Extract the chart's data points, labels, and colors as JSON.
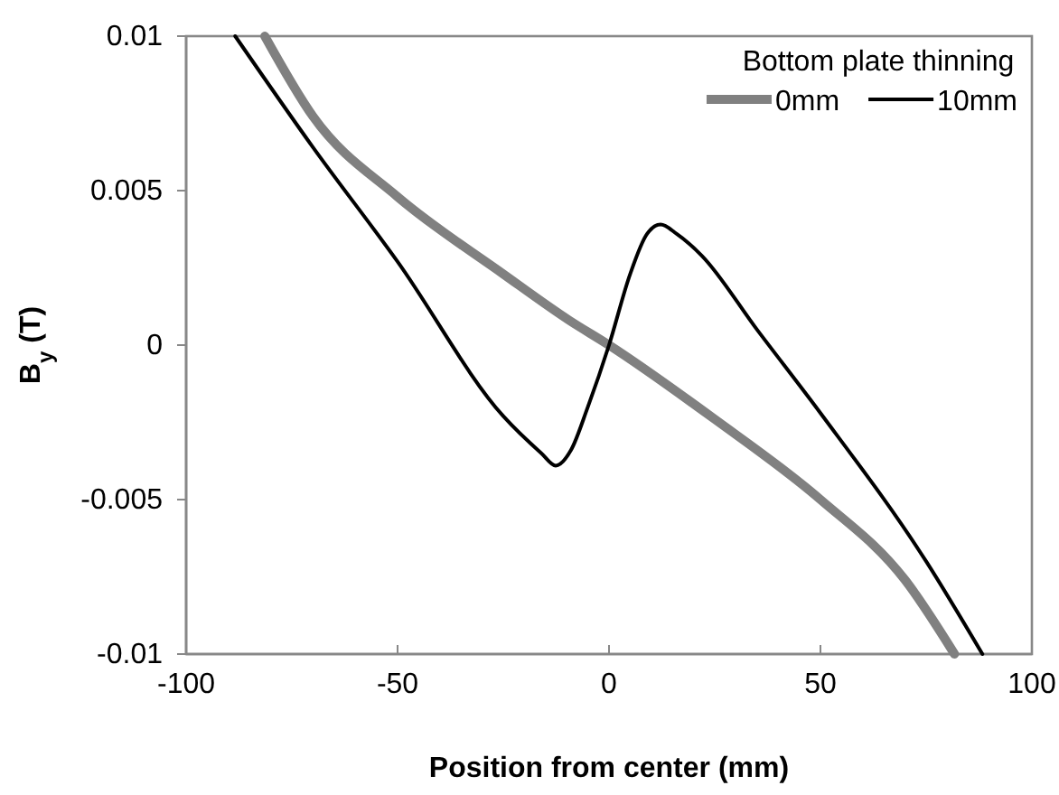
{
  "chart_data": {
    "type": "line",
    "xlabel": "Position from center (mm)",
    "ylabel": "B$_{y}$ (T)",
    "legend_title": "Bottom plate thinning",
    "legend": "top right",
    "grid": false,
    "marker": "none",
    "line_style": "solid",
    "xlim": [
      -100,
      100
    ],
    "xticks": [
      -100,
      -50,
      0,
      50,
      100
    ],
    "ylim": [
      -0.01,
      0.01
    ],
    "yticks": [
      -0.01,
      -0.005,
      0,
      0.005,
      0.01
    ],
    "series": [
      {
        "name": "0mm",
        "color": "#808080",
        "x": [
          -81.4,
          -70,
          -50,
          -25,
          -9.4,
          0,
          25,
          50,
          70,
          81.7
        ],
        "values": [
          0.01,
          0.0074,
          0.0048,
          0.0023,
          0.0008,
          0,
          -0.0024,
          -0.005,
          -0.0076,
          -0.01
        ]
      },
      {
        "name": "10mm",
        "color": "#000000",
        "x": [
          -88.4,
          -70,
          -50,
          -25,
          -16,
          -12.6,
          -9,
          -5,
          0,
          5,
          9,
          12.2,
          16,
          21.9,
          35,
          50,
          75,
          88.3
        ],
        "values": [
          0.01,
          0.0064,
          0.0027,
          -0.0023,
          -0.0035,
          -0.0039,
          -0.0034,
          -0.002,
          0,
          0.0023,
          0.0036,
          0.0039,
          0.0036,
          0.0029,
          0.0005,
          -0.0022,
          -0.007,
          -0.01
        ]
      }
    ]
  }
}
